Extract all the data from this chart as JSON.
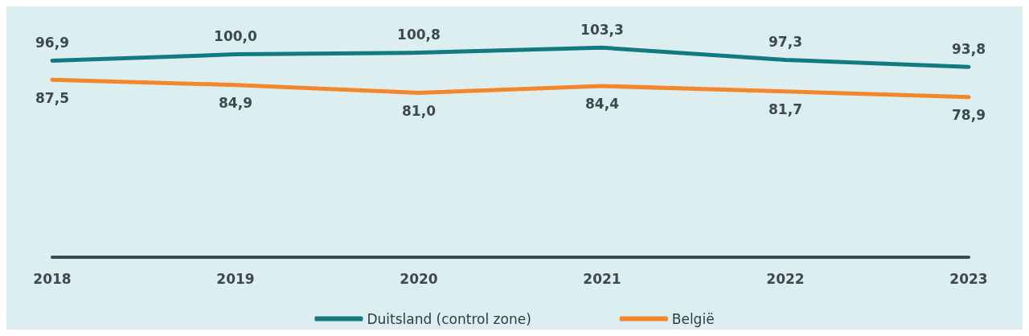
{
  "chart_data": {
    "type": "line",
    "categories": [
      "2018",
      "2019",
      "2020",
      "2021",
      "2022",
      "2023"
    ],
    "series": [
      {
        "name": "Duitsland (control zone)",
        "color": "#137b80",
        "values": [
          96.9,
          100.0,
          100.8,
          103.3,
          97.3,
          93.8
        ],
        "value_labels": [
          "96,9",
          "100,0",
          "100,8",
          "103,3",
          "97,3",
          "93,8"
        ]
      },
      {
        "name": "België",
        "color": "#f5862a",
        "values": [
          87.5,
          84.9,
          81.0,
          84.4,
          81.7,
          78.9
        ],
        "value_labels": [
          "87,5",
          "84,9",
          "81,0",
          "84,4",
          "81,7",
          "78,9"
        ]
      }
    ],
    "legend": "bottom",
    "grid": false,
    "marker": "none",
    "line_style": "solid"
  }
}
